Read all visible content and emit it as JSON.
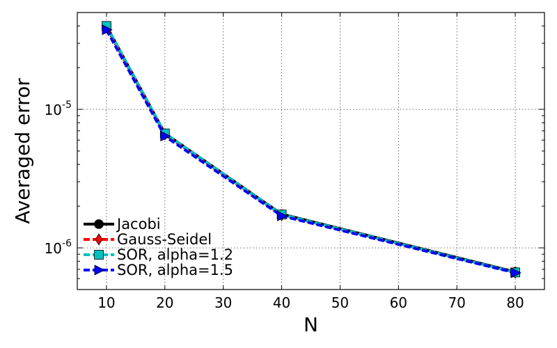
{
  "chart_data": {
    "type": "line",
    "title": "",
    "xlabel": "N",
    "ylabel": "Averaged error",
    "yscale": "log",
    "xlim": [
      5,
      85
    ],
    "ylim": [
      5e-07,
      5e-05
    ],
    "grid": true,
    "legend_position": "lower-left",
    "x": [
      10,
      20,
      40,
      80
    ],
    "xticks": [
      10,
      20,
      30,
      40,
      50,
      60,
      70,
      80
    ],
    "xtick_labels": [
      "10",
      "20",
      "30",
      "40",
      "50",
      "60",
      "70",
      "80"
    ],
    "yticks": [
      1e-06,
      1e-05
    ],
    "ytick_labels": [
      {
        "base": "10",
        "exp": "-6"
      },
      {
        "base": "10",
        "exp": "-5"
      }
    ],
    "series": [
      {
        "name": "Jacobi",
        "values": [
          4e-05,
          6.7e-06,
          1.75e-06,
          6.7e-07
        ],
        "color": "#000000",
        "dash": "solid",
        "marker": "circle"
      },
      {
        "name": "Gauss-Seidel",
        "values": [
          3.9e-05,
          6.6e-06,
          1.72e-06,
          6.65e-07
        ],
        "color": "#ff0000",
        "dash": "dashed",
        "marker": "diamond"
      },
      {
        "name": "SOR, alpha=1.2",
        "values": [
          4e-05,
          6.7e-06,
          1.74e-06,
          6.65e-07
        ],
        "color": "#00bfbf",
        "dash": "dashed",
        "marker": "square"
      },
      {
        "name": "SOR, alpha=1.5",
        "values": [
          3.75e-05,
          6.4e-06,
          1.7e-06,
          6.6e-07
        ],
        "color": "#0000ff",
        "dash": "dashed",
        "marker": "triangle-right"
      }
    ]
  }
}
